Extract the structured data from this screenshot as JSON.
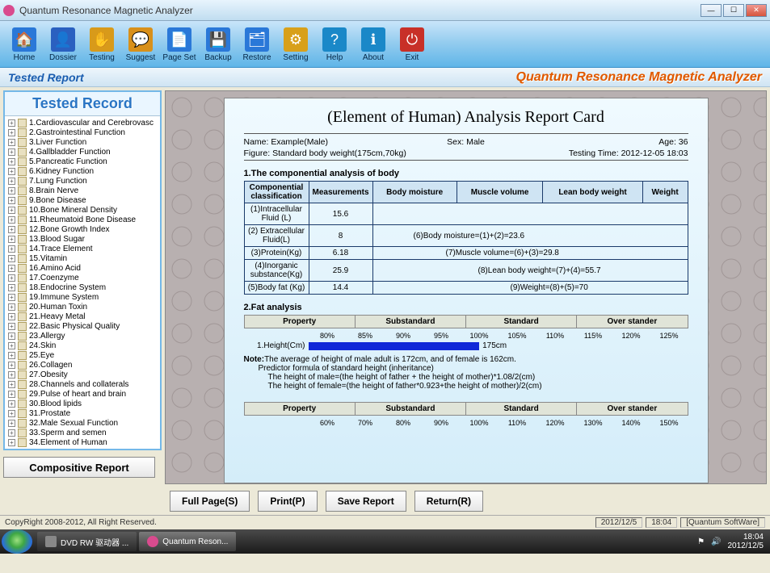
{
  "window": {
    "title": "Quantum Resonance Magnetic Analyzer"
  },
  "toolbar": [
    {
      "label": "Home",
      "color": "#2a78d8",
      "glyph": "🏠"
    },
    {
      "label": "Dossier",
      "color": "#2a60c0",
      "glyph": "👤"
    },
    {
      "label": "Testing",
      "color": "#d89a1a",
      "glyph": "✋"
    },
    {
      "label": "Suggest",
      "color": "#d8901a",
      "glyph": "💬"
    },
    {
      "label": "Page Set",
      "color": "#2a78d8",
      "glyph": "📄"
    },
    {
      "label": "Backup",
      "color": "#2a78d8",
      "glyph": "💾"
    },
    {
      "label": "Restore",
      "color": "#2a78d8",
      "glyph": "🗂"
    },
    {
      "label": "Setting",
      "color": "#d8a01a",
      "glyph": "⚙"
    },
    {
      "label": "Help",
      "color": "#1a88c8",
      "glyph": "?"
    },
    {
      "label": "About",
      "color": "#1a88c8",
      "glyph": "ℹ"
    },
    {
      "label": "Exit",
      "color": "#c83028",
      "glyph": "⏻"
    }
  ],
  "header": {
    "title": "Tested Report",
    "brand": "Quantum Resonance Magnetic Analyzer"
  },
  "sidebar": {
    "title": "Tested Record",
    "items": [
      "1.Cardiovascular and Cerebrovasc",
      "2.Gastrointestinal Function",
      "3.Liver Function",
      "4.Gallbladder Function",
      "5.Pancreatic Function",
      "6.Kidney Function",
      "7.Lung Function",
      "8.Brain Nerve",
      "9.Bone Disease",
      "10.Bone Mineral Density",
      "11.Rheumatoid Bone Disease",
      "12.Bone Growth Index",
      "13.Blood Sugar",
      "14.Trace Element",
      "15.Vitamin",
      "16.Amino Acid",
      "17.Coenzyme",
      "18.Endocrine System",
      "19.Immune System",
      "20.Human Toxin",
      "21.Heavy Metal",
      "22.Basic Physical Quality",
      "23.Allergy",
      "24.Skin",
      "25.Eye",
      "26.Collagen",
      "27.Obesity",
      "28.Channels and collaterals",
      "29.Pulse of heart and brain",
      "30.Blood lipids",
      "31.Prostate",
      "32.Male Sexual Function",
      "33.Sperm and semen",
      "34.Element of Human"
    ]
  },
  "report": {
    "title": "(Element of Human) Analysis Report Card",
    "meta": {
      "name_label": "Name: Example(Male)",
      "sex_label": "Sex: Male",
      "age_label": "Age: 36",
      "figure_label": "Figure: Standard body weight(175cm,70kg)",
      "time_label": "Testing Time: 2012-12-05 18:03"
    },
    "section1": {
      "title": "1.The componential analysis of body",
      "headers": [
        "Componential classification",
        "Measurements",
        "Body moisture",
        "Muscle volume",
        "Lean body weight",
        "Weight"
      ],
      "rows": [
        {
          "c0": "(1)Intracellular Fluid (L)",
          "c1": "15.6",
          "note": ""
        },
        {
          "c0": "(2) Extracellular Fluid(L)",
          "c1": "8",
          "note": "(6)Body moisture=(1)+(2)=23.6"
        },
        {
          "c0": "(3)Protein(Kg)",
          "c1": "6.18",
          "note": "(7)Muscle volume=(6)+(3)=29.8"
        },
        {
          "c0": "(4)Inorganic substance(Kg)",
          "c1": "25.9",
          "note": "(8)Lean body weight=(7)+(4)=55.7"
        },
        {
          "c0": "(5)Body fat (Kg)",
          "c1": "14.4",
          "note": "(9)Weight=(8)+(5)=70"
        }
      ]
    },
    "section2": {
      "title": "2.Fat analysis",
      "fat_headers": [
        "Property",
        "Substandard",
        "Standard",
        "Over stander"
      ],
      "scale": [
        "80%",
        "85%",
        "90%",
        "95%",
        "100%",
        "105%",
        "110%",
        "115%",
        "120%",
        "125%"
      ],
      "row1": {
        "label": "1.Height(Cm)",
        "bar_pct": 46,
        "value": "175cm"
      },
      "note_bold": "Note:",
      "note_text": "The average of height of male adult is 172cm, and of female is 162cm.",
      "pred1": "Predictor formula of standard height (inheritance)",
      "pred2": "The height of male=(the height of father + the height of mother)*1.08/2(cm)",
      "pred3": "The height of female=(the height of father*0.923+the height of mother)/2(cm)",
      "scale2": [
        "60%",
        "70%",
        "80%",
        "90%",
        "100%",
        "110%",
        "120%",
        "130%",
        "140%",
        "150%"
      ]
    }
  },
  "buttons": {
    "comp": "Compositive Report",
    "fullpage": "Full Page(S)",
    "print": "Print(P)",
    "save": "Save Report",
    "return": "Return(R)"
  },
  "status": {
    "copy": "CopyRight 2008-2012, All Right Reserved.",
    "date": "2012/12/5",
    "time": "18:04",
    "company": "[Quantum SoftWare]"
  },
  "taskbar": {
    "item1": "DVD RW 驱动器 ...",
    "item2": "Quantum Reson...",
    "time": "18:04",
    "date": "2012/12/5"
  }
}
